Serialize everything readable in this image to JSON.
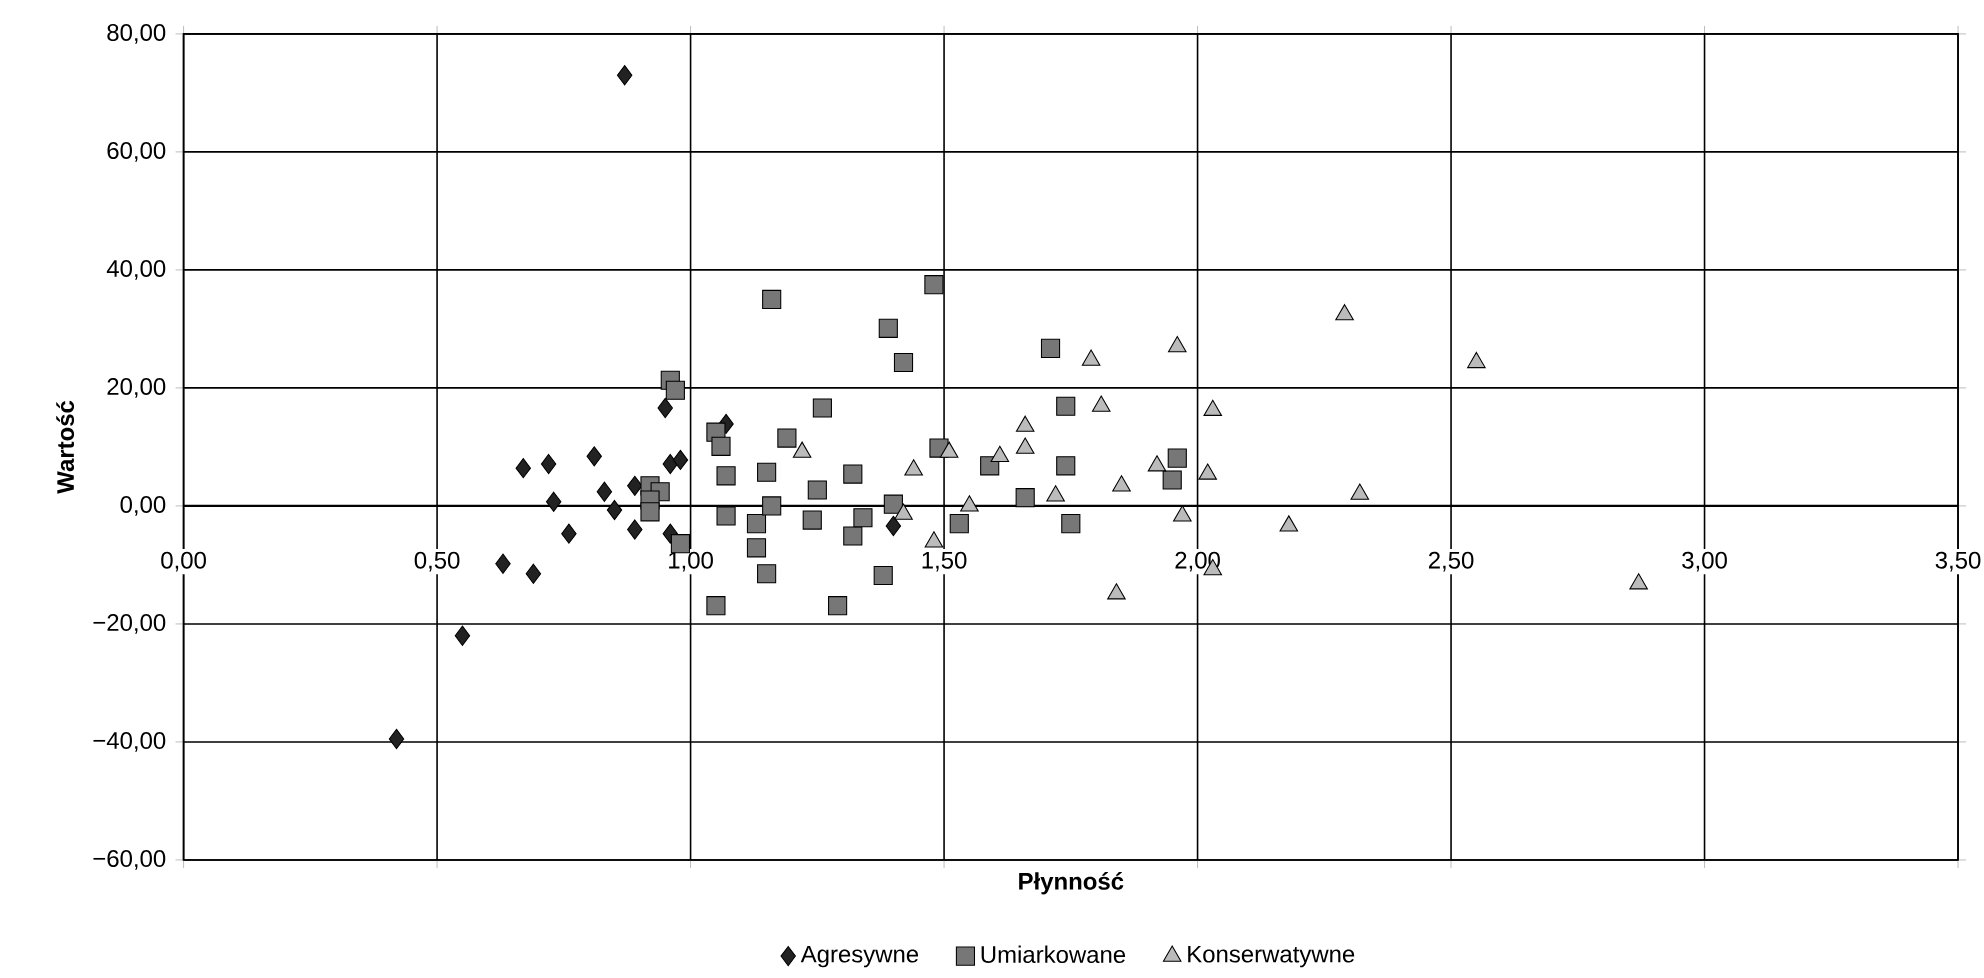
{
  "chart_data": {
    "type": "scatter",
    "xlabel": "Płynność",
    "ylabel": "Wartość",
    "xlim": [
      0,
      3.5
    ],
    "ylim": [
      -60,
      80
    ],
    "xticks": [
      {
        "value": 0,
        "label": "0,00"
      },
      {
        "value": 0.5,
        "label": "0,50"
      },
      {
        "value": 1,
        "label": "1,00"
      },
      {
        "value": 1.5,
        "label": "1,50"
      },
      {
        "value": 2,
        "label": "2,00"
      },
      {
        "value": 2.5,
        "label": "2,50"
      },
      {
        "value": 3,
        "label": "3,00"
      },
      {
        "value": 3.5,
        "label": "3,50"
      }
    ],
    "yticks": [
      {
        "value": -60,
        "label": "−60,00"
      },
      {
        "value": -40,
        "label": "−40,00"
      },
      {
        "value": -20,
        "label": "−20,00"
      },
      {
        "value": 0,
        "label": "0,00"
      },
      {
        "value": 20,
        "label": "20,00"
      },
      {
        "value": 40,
        "label": "40,00"
      },
      {
        "value": 60,
        "label": "60,00"
      },
      {
        "value": 80,
        "label": "80,00"
      }
    ],
    "grid": true,
    "legend": "bottom",
    "series": [
      {
        "name": "Agresywne",
        "color": "#222222",
        "marker": "diamond",
        "x": [
          0.87,
          0.42,
          0.55,
          0.63,
          0.69,
          0.67,
          0.72,
          0.73,
          0.76,
          0.81,
          0.83,
          0.85,
          0.89,
          0.89,
          0.95,
          0.96,
          0.98,
          0.96,
          1.07,
          1.4
        ],
        "values": [
          73,
          -39.5,
          -22,
          -9.8,
          -11.5,
          6.4,
          7.1,
          0.7,
          -4.7,
          8.4,
          2.4,
          -0.7,
          -4,
          3.4,
          16.6,
          7.1,
          7.8,
          -4.7,
          13.9,
          -3.4
        ]
      },
      {
        "name": "Umiarkowane",
        "color": "#777777",
        "marker": "square",
        "x": [
          1.16,
          0.96,
          0.97,
          1.05,
          1.06,
          1.07,
          1.15,
          1.19,
          0.92,
          0.94,
          0.92,
          0.92,
          1.07,
          1.13,
          1.16,
          0.98,
          1.13,
          1.15,
          1.05,
          1.24,
          1.48,
          1.39,
          1.42,
          1.71,
          1.74,
          1.26,
          1.49,
          1.59,
          1.74,
          1.96,
          1.95,
          1.66,
          1.75,
          1.53,
          1.32,
          1.25,
          1.32,
          1.34,
          1.4,
          1.38,
          1.29
        ],
        "values": [
          35,
          21.3,
          19.6,
          12.5,
          10.1,
          5.1,
          5.7,
          11.5,
          3.4,
          2.4,
          1.0,
          -1.0,
          -1.7,
          -3.0,
          0,
          -6.4,
          -7.1,
          -11.5,
          -16.9,
          -2.4,
          37.5,
          30.1,
          24.3,
          26.7,
          16.9,
          16.6,
          9.8,
          6.8,
          6.8,
          8.1,
          4.4,
          1.4,
          -3.0,
          -3.0,
          5.4,
          2.7,
          -5.1,
          -2.0,
          0.3,
          -11.8,
          -16.9
        ]
      },
      {
        "name": "Konserwatywne",
        "color": "#bbbbbb",
        "marker": "triangle",
        "x": [
          1.22,
          1.44,
          1.51,
          1.42,
          1.48,
          1.55,
          1.61,
          1.66,
          1.66,
          1.72,
          1.79,
          1.81,
          1.84,
          1.85,
          1.92,
          1.96,
          1.97,
          2.02,
          2.03,
          2.03,
          2.29,
          2.55,
          2.32,
          2.18,
          2.87
        ],
        "values": [
          9.1,
          6.1,
          9.1,
          -1.4,
          -6.1,
          0,
          8.4,
          9.8,
          13.5,
          1.7,
          24.7,
          16.9,
          -14.9,
          3.4,
          6.8,
          27,
          -1.7,
          5.4,
          16.2,
          -10.8,
          32.4,
          24.3,
          2.0,
          -3.4,
          -13.2
        ]
      }
    ]
  }
}
